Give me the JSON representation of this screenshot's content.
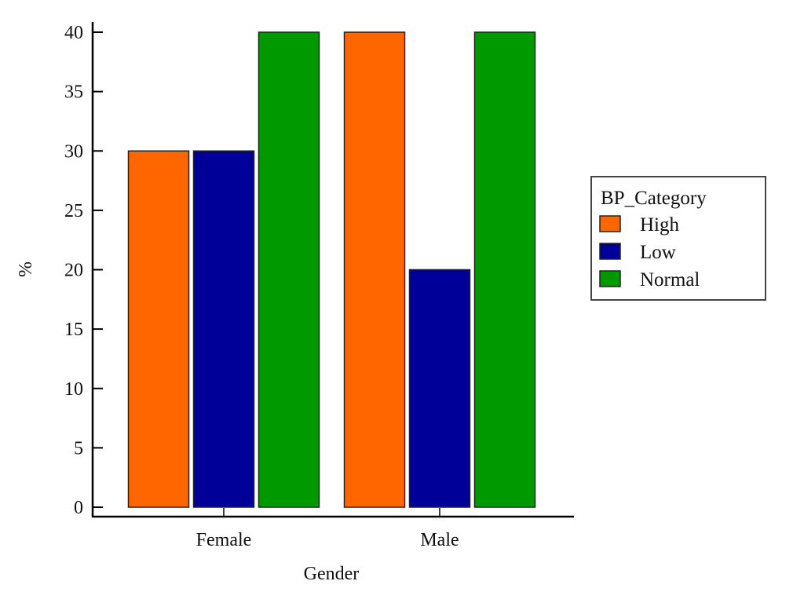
{
  "chart_data": {
    "type": "bar",
    "title": "",
    "xlabel": "Gender",
    "ylabel": "%",
    "ylim": [
      0,
      40
    ],
    "yticks": [
      "0",
      "5",
      "10",
      "15",
      "20",
      "25",
      "30",
      "35",
      "40"
    ],
    "categories": [
      "Female",
      "Male"
    ],
    "legend": {
      "title": "BP_Category",
      "placement": "right"
    },
    "series": [
      {
        "name": "High",
        "color": "#FF6600",
        "values": [
          30,
          40
        ]
      },
      {
        "name": "Low",
        "color": "#000099",
        "values": [
          30,
          20
        ]
      },
      {
        "name": "Normal",
        "color": "#009900",
        "values": [
          40,
          40
        ]
      }
    ],
    "grid": false
  }
}
